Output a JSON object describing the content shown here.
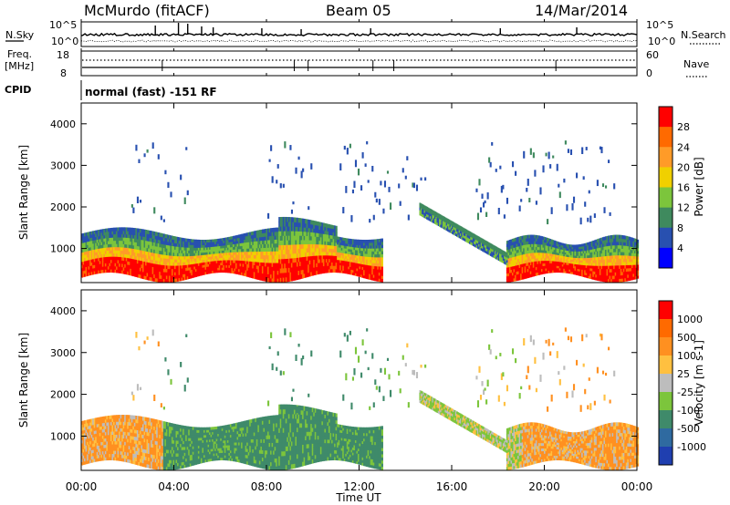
{
  "header": {
    "station": "McMurdo (fitACF)",
    "beam": "Beam 05",
    "date": "14/Mar/2014"
  },
  "top_panels": {
    "nsky_label": "N.Sky",
    "nsky_ticks": [
      "10^5",
      "10^0"
    ],
    "nsearch_label": "N.Search",
    "nsearch_ticks": [
      "10^5",
      "10^0"
    ],
    "freq_label_1": "Freq.",
    "freq_label_2": "[MHz]",
    "freq_ticks": [
      "18",
      "8"
    ],
    "nave_label": "Nave",
    "nave_ticks": [
      "60",
      "0"
    ],
    "cpid_label": "CPID",
    "cpid_text": "normal (fast) -151 RF"
  },
  "chart_data": [
    {
      "type": "heatmap",
      "title": "",
      "xlabel": "Time UT",
      "ylabel": "Slant Range [km]",
      "ylim": [
        180,
        4500
      ],
      "y_ticks": [
        "4000",
        "3000",
        "2000",
        "1000"
      ],
      "x_ticks": [
        "00:00",
        "04:00",
        "08:00",
        "12:00",
        "16:00",
        "20:00",
        "00:00"
      ],
      "colorbar": {
        "label": "Power [dB]",
        "range": [
          0,
          32
        ],
        "ticks": [
          "28",
          "24",
          "20",
          "16",
          "12",
          "8",
          "4"
        ],
        "colors": [
          "#0000ff",
          "#2850b0",
          "#3f8a5e",
          "#7cc53c",
          "#f0d000",
          "#ff9b28",
          "#ff6a00",
          "#ff0000"
        ]
      }
    },
    {
      "type": "heatmap",
      "title": "",
      "xlabel": "Time UT",
      "ylabel": "Slant Range [km]",
      "ylim": [
        180,
        4500
      ],
      "y_ticks": [
        "4000",
        "3000",
        "2000",
        "1000"
      ],
      "x_ticks": [
        "00:00",
        "04:00",
        "08:00",
        "12:00",
        "16:00",
        "20:00",
        "00:00"
      ],
      "colorbar": {
        "label": "Velocity [m s-1]",
        "ticks": [
          "1000",
          "500",
          "100",
          "25",
          "-25",
          "-100",
          "-500",
          "-1000"
        ],
        "colors": [
          "#1f3fb0",
          "#2f6aa0",
          "#3f8a6a",
          "#7cc53c",
          "#bdbdbd",
          "#ffc040",
          "#ff9020",
          "#ff6a00",
          "#ff0000"
        ]
      }
    }
  ]
}
